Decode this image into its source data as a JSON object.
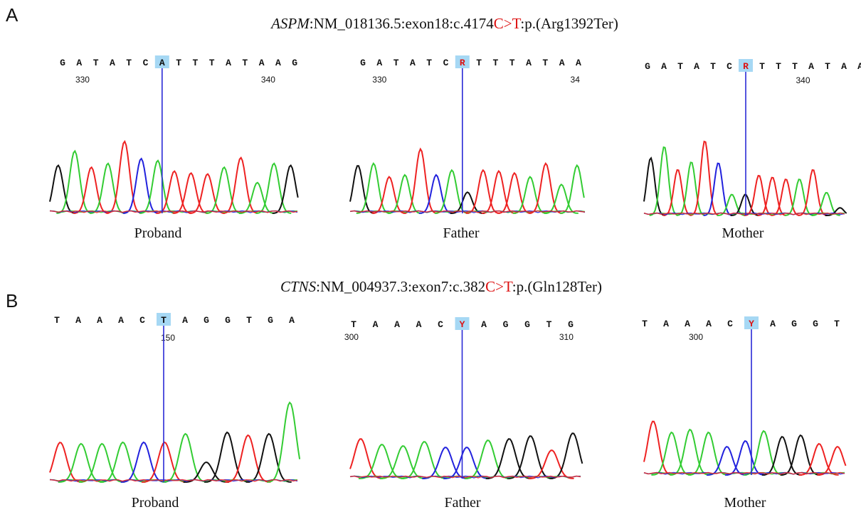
{
  "colors": {
    "A": "#33cc33",
    "C": "#2222dd",
    "G": "#111111",
    "T": "#ee2222",
    "mutation": "#dd1111",
    "highlight": "#a6d8f4",
    "cursor": "#2a2ad6",
    "text": "#111111"
  },
  "panels": [
    {
      "letter": "A",
      "gene": "ASPM",
      "desc_prefix": ":NM_018136.5:exon18:c.4174",
      "mut_ref": "C",
      "mut_arrow": ">",
      "mut_alt": "T",
      "desc_suffix": ":p.(Arg1392Ter)",
      "traces": [
        {
          "label": "Proband",
          "bases": [
            "G",
            "A",
            "T",
            "A",
            "T",
            "C",
            "A",
            "T",
            "T",
            "T",
            "A",
            "T",
            "A",
            "A",
            "G"
          ],
          "highlight_index": 6,
          "pos_labels": [
            {
              "text": "330",
              "at": 1.2
            },
            {
              "text": "340",
              "at": 12.4
            }
          ],
          "peaks": [
            {
              "b": "G",
              "h": 0.5
            },
            {
              "b": "A",
              "h": 0.65
            },
            {
              "b": "T",
              "h": 0.48
            },
            {
              "b": "A",
              "h": 0.52
            },
            {
              "b": "T",
              "h": 0.75
            },
            {
              "b": "C",
              "h": 0.57
            },
            {
              "b": "A",
              "h": 0.55
            },
            {
              "b": "T",
              "h": 0.44
            },
            {
              "b": "T",
              "h": 0.42
            },
            {
              "b": "T",
              "h": 0.41
            },
            {
              "b": "A",
              "h": 0.48
            },
            {
              "b": "T",
              "h": 0.58
            },
            {
              "b": "A",
              "h": 0.32
            },
            {
              "b": "A",
              "h": 0.52
            },
            {
              "b": "G",
              "h": 0.5
            }
          ]
        },
        {
          "label": "Father",
          "bases": [
            "G",
            "A",
            "T",
            "A",
            "T",
            "C",
            "R",
            "T",
            "T",
            "T",
            "A",
            "T",
            "A",
            "A"
          ],
          "highlight_index": 6,
          "pos_labels": [
            {
              "text": "330",
              "at": 1.0
            },
            {
              "text": "34",
              "at": 12.8
            }
          ],
          "peaks": [
            {
              "b": "G",
              "h": 0.5
            },
            {
              "b": "A",
              "h": 0.52
            },
            {
              "b": "T",
              "h": 0.38
            },
            {
              "b": "A",
              "h": 0.4
            },
            {
              "b": "T",
              "h": 0.67
            },
            {
              "b": "C",
              "h": 0.4
            },
            {
              "b": "A",
              "h": 0.45
            },
            {
              "b": "G",
              "h": 0.22
            },
            {
              "b": "T",
              "h": 0.45
            },
            {
              "b": "T",
              "h": 0.44
            },
            {
              "b": "T",
              "h": 0.42
            },
            {
              "b": "A",
              "h": 0.38
            },
            {
              "b": "T",
              "h": 0.52
            },
            {
              "b": "A",
              "h": 0.3
            },
            {
              "b": "A",
              "h": 0.5
            }
          ]
        },
        {
          "label": "Mother",
          "bases": [
            "G",
            "A",
            "T",
            "A",
            "T",
            "C",
            "R",
            "T",
            "T",
            "T",
            "A",
            "T",
            "A",
            "A"
          ],
          "highlight_index": 6,
          "pos_labels": [
            {
              "text": "340",
              "at": 9.5
            }
          ],
          "peaks": [
            {
              "b": "G",
              "h": 0.6
            },
            {
              "b": "A",
              "h": 0.72
            },
            {
              "b": "T",
              "h": 0.48
            },
            {
              "b": "A",
              "h": 0.56
            },
            {
              "b": "T",
              "h": 0.78
            },
            {
              "b": "C",
              "h": 0.55
            },
            {
              "b": "A",
              "h": 0.22
            },
            {
              "b": "G",
              "h": 0.22
            },
            {
              "b": "T",
              "h": 0.42
            },
            {
              "b": "T",
              "h": 0.4
            },
            {
              "b": "T",
              "h": 0.38
            },
            {
              "b": "A",
              "h": 0.38
            },
            {
              "b": "T",
              "h": 0.48
            },
            {
              "b": "A",
              "h": 0.24
            },
            {
              "b": "G",
              "h": 0.08
            }
          ]
        }
      ]
    },
    {
      "letter": "B",
      "gene": "CTNS",
      "desc_prefix": ":NM_004937.3:exon7:c.382",
      "mut_ref": "C",
      "mut_arrow": ">",
      "mut_alt": "T",
      "desc_suffix": ":p.(Gln128Ter)",
      "traces": [
        {
          "label": "Proband",
          "bases": [
            "T",
            "A",
            "A",
            "A",
            "C",
            "T",
            "A",
            "G",
            "G",
            "T",
            "G",
            "A"
          ],
          "highlight_index": 5,
          "pos_labels": [
            {
              "text": "150",
              "at": 5.2
            }
          ],
          "peaks": [
            {
              "b": "T",
              "h": 0.28
            },
            {
              "b": "A",
              "h": 0.27
            },
            {
              "b": "A",
              "h": 0.27
            },
            {
              "b": "A",
              "h": 0.28
            },
            {
              "b": "C",
              "h": 0.28
            },
            {
              "b": "T",
              "h": 0.28
            },
            {
              "b": "A",
              "h": 0.34
            },
            {
              "b": "G",
              "h": 0.14
            },
            {
              "b": "G",
              "h": 0.35
            },
            {
              "b": "T",
              "h": 0.33
            },
            {
              "b": "G",
              "h": 0.34
            },
            {
              "b": "A",
              "h": 0.56
            }
          ]
        },
        {
          "label": "Father",
          "bases": [
            "T",
            "A",
            "A",
            "A",
            "C",
            "Y",
            "A",
            "G",
            "G",
            "T",
            "G"
          ],
          "highlight_index": 5,
          "pos_labels": [
            {
              "text": "300",
              "at": -0.1
            },
            {
              "text": "310",
              "at": 9.8
            }
          ],
          "peaks": [
            {
              "b": "T",
              "h": 0.28
            },
            {
              "b": "A",
              "h": 0.24
            },
            {
              "b": "A",
              "h": 0.23
            },
            {
              "b": "A",
              "h": 0.26
            },
            {
              "b": "C",
              "h": 0.22
            },
            {
              "b": "C",
              "h": 0.22
            },
            {
              "b": "A",
              "h": 0.27
            },
            {
              "b": "G",
              "h": 0.28
            },
            {
              "b": "G",
              "h": 0.3
            },
            {
              "b": "T",
              "h": 0.2
            },
            {
              "b": "G",
              "h": 0.32
            }
          ]
        },
        {
          "label": "Mother",
          "bases": [
            "T",
            "A",
            "A",
            "A",
            "C",
            "Y",
            "A",
            "G",
            "G",
            "T"
          ],
          "highlight_index": 5,
          "pos_labels": [
            {
              "text": "300",
              "at": 2.4
            }
          ],
          "peaks": [
            {
              "b": "T",
              "h": 0.38
            },
            {
              "b": "A",
              "h": 0.3
            },
            {
              "b": "A",
              "h": 0.32
            },
            {
              "b": "A",
              "h": 0.3
            },
            {
              "b": "C",
              "h": 0.2
            },
            {
              "b": "C",
              "h": 0.24
            },
            {
              "b": "A",
              "h": 0.31
            },
            {
              "b": "G",
              "h": 0.27
            },
            {
              "b": "G",
              "h": 0.28
            },
            {
              "b": "T",
              "h": 0.22
            },
            {
              "b": "T",
              "h": 0.2
            }
          ]
        }
      ]
    }
  ]
}
